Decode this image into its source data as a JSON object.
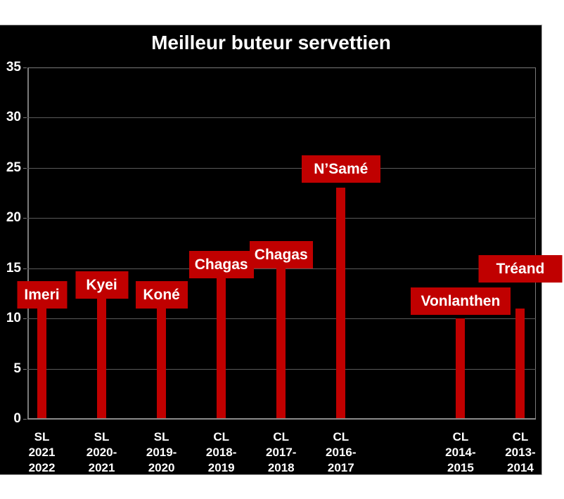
{
  "colors": {
    "page_background": "#ffffff",
    "chart_background": "#000000",
    "bar": "#c00000",
    "label_box": "#c00000",
    "label_text": "#ffffff",
    "gridline": "#5a5a5a",
    "axis": "#8a8a8a",
    "tick_text": "#ffffff"
  },
  "chart_data": {
    "type": "bar",
    "title": "Meilleur buteur servettien",
    "xlabel": "",
    "ylabel": "",
    "ylim": [
      0,
      35
    ],
    "ytick_step": 5,
    "yticks": [
      35,
      30,
      25,
      20,
      15,
      10,
      5,
      0
    ],
    "grid": true,
    "legend": false,
    "n_slots": 9,
    "empty_slot_index": 6,
    "bars": [
      {
        "slot": 0,
        "label": "Imeri",
        "value": 11,
        "category_lines": [
          "SL",
          "2021",
          "2022"
        ]
      },
      {
        "slot": 1,
        "label": "Kyei",
        "value": 12,
        "category_lines": [
          "SL",
          "2020-",
          "2021"
        ]
      },
      {
        "slot": 2,
        "label": "Koné",
        "value": 11,
        "category_lines": [
          "SL",
          "2019-",
          "2020"
        ]
      },
      {
        "slot": 3,
        "label": "Chagas",
        "value": 14,
        "category_lines": [
          "CL",
          "2018-",
          "2019"
        ]
      },
      {
        "slot": 4,
        "label": "Chagas",
        "value": 15,
        "category_lines": [
          "CL",
          "2017-",
          "2018"
        ]
      },
      {
        "slot": 5,
        "label": "N’Samé",
        "value": 23,
        "category_lines": [
          "CL",
          "2016-",
          "2017"
        ]
      },
      {
        "slot": 7,
        "label": "Vonlanthen",
        "value": 10,
        "category_lines": [
          "CL",
          "2014-",
          "2015"
        ]
      },
      {
        "slot": 8,
        "label": "Tréand",
        "value": 11,
        "category_lines": [
          "CL",
          "2013-",
          "2014"
        ]
      }
    ]
  }
}
